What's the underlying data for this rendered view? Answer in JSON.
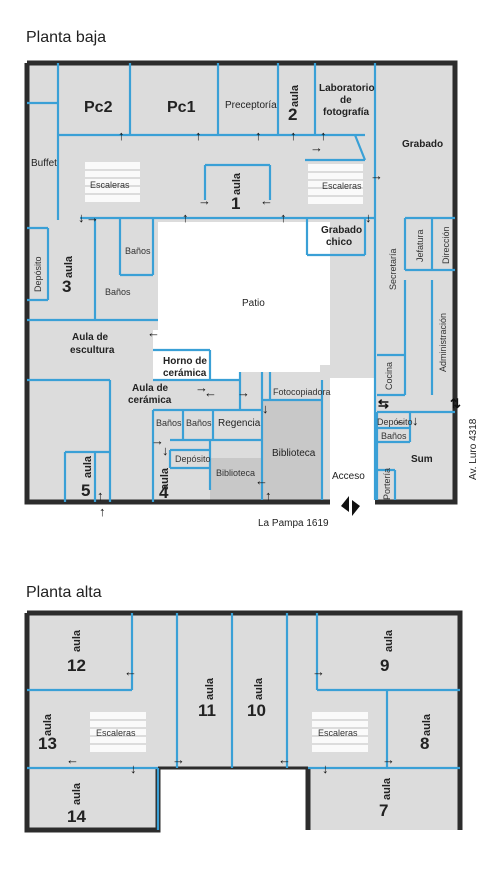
{
  "titles": {
    "ground": "Planta baja",
    "upper": "Planta alta"
  },
  "ground_floor": {
    "pc2": "Pc2",
    "pc1": "Pc1",
    "preceptoria": "Preceptoría",
    "aula_word": "aula",
    "lab_line1": "Laboratorio",
    "lab_line2": "de",
    "lab_line3": "fotografía",
    "grabado": "Grabado",
    "buffet": "Buffet",
    "escaleras": "Escaleras",
    "grabado_chico_1": "Grabado",
    "grabado_chico_2": "chico",
    "deposito": "Depósito",
    "banos": "Baños",
    "secretaria": "Secretaría",
    "jefatura": "Jefatura",
    "direccion": "Dirección",
    "administracion": "Administración",
    "patio": "Patio",
    "escultura_1": "Aula de",
    "escultura_2": "escultura",
    "horno_1": "Horno de",
    "horno_2": "cerámica",
    "ceramica_1": "Aula de",
    "ceramica_2": "cerámica",
    "fotocopiadora": "Fotocopiadora",
    "regencia": "Regencia",
    "biblioteca": "Biblioteca",
    "cocina": "Cocina",
    "deposito2": "Depósito",
    "banos2": "Baños",
    "sum": "Sum",
    "porteria": "Portería",
    "acceso": "Acceso",
    "street_south": "La Pampa 1619",
    "street_east": "Av. Luro 4318",
    "n1": "1",
    "n2": "2",
    "n3": "3",
    "n4": "4",
    "n5": "5"
  },
  "upper_floor": {
    "aula_word": "aula",
    "escaleras": "Escaleras",
    "n7": "7",
    "n8": "8",
    "n9": "9",
    "n10": "10",
    "n11": "11",
    "n12": "12",
    "n13": "13",
    "n14": "14"
  },
  "colors": {
    "walls": "#2c2c2c",
    "doors": "#3aa0d6",
    "rooms": "#dcdcdc"
  }
}
